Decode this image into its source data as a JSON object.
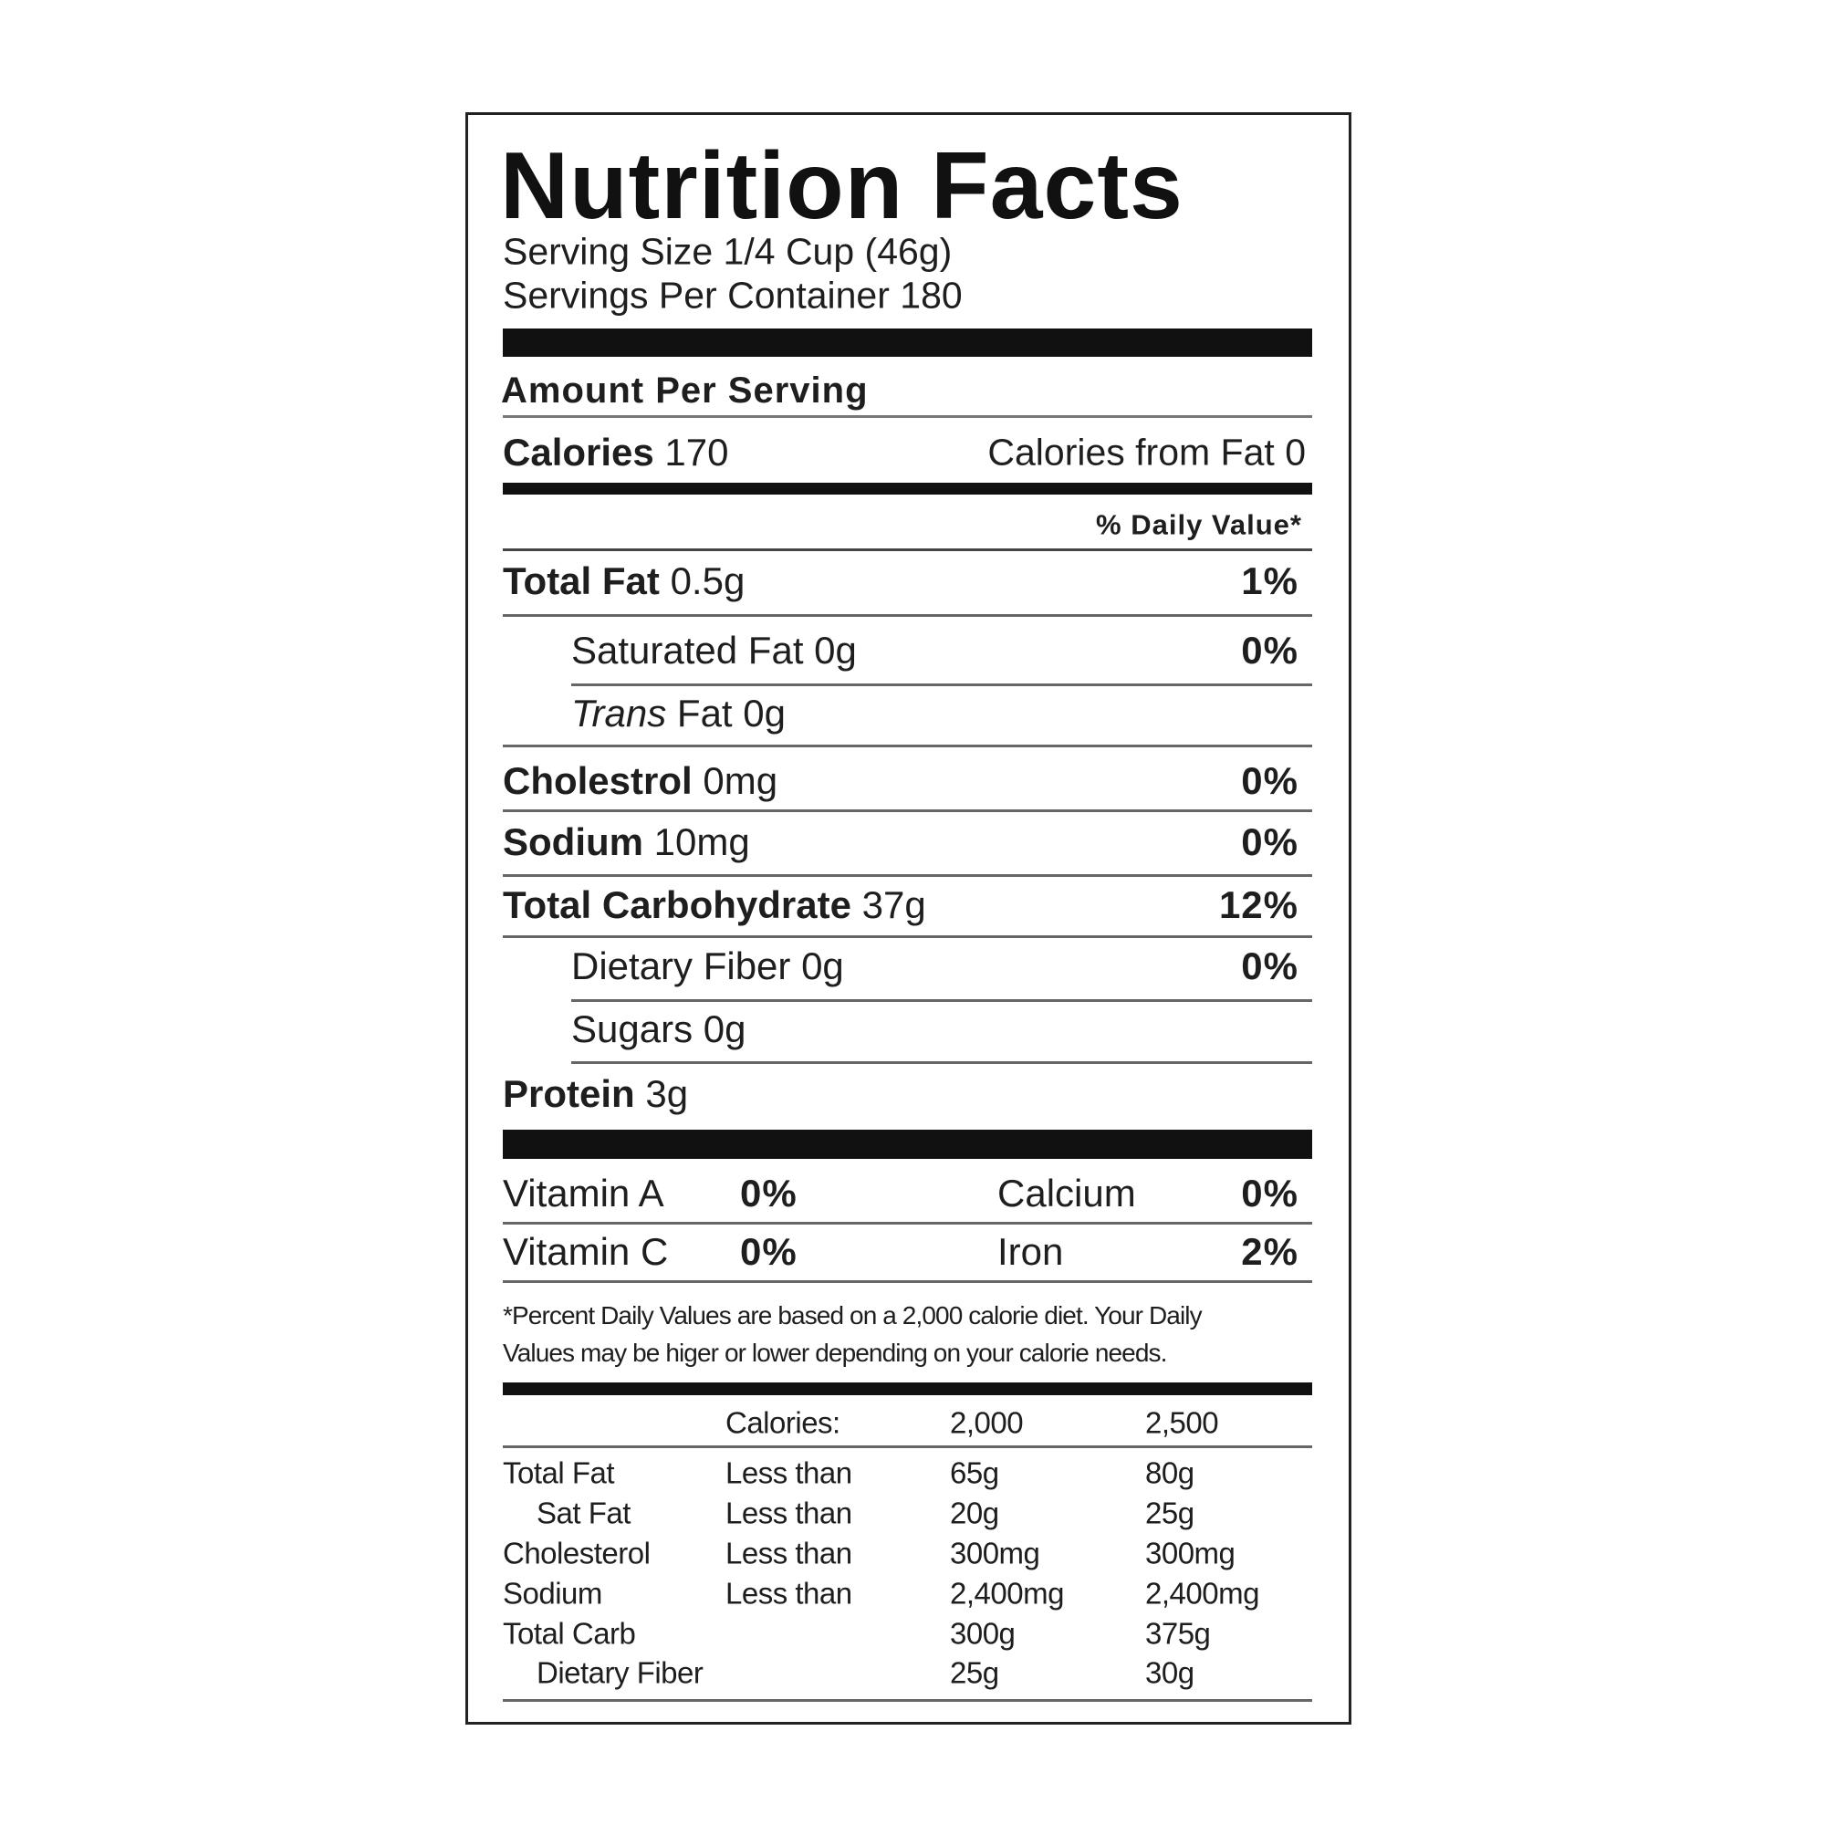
{
  "header": {
    "title": "Nutrition Facts",
    "serving_size": "Serving Size 1/4 Cup (46g)",
    "servings_per_container": "Servings Per Container 180"
  },
  "amount_per_serving": "Amount Per Serving",
  "calories": {
    "label": "Calories",
    "value": "170",
    "from_fat": "Calories from Fat 0"
  },
  "daily_value_heading": "% Daily Value*",
  "nutrients": [
    {
      "label": "Total Fat",
      "amount": "0.5g",
      "daily_value": "1%"
    },
    {
      "label": "Saturated Fat",
      "amount": "0g",
      "daily_value": "0%"
    },
    {
      "prefix": "Trans",
      "label": "Fat",
      "amount": "0g"
    },
    {
      "label": "Cholestrol",
      "amount": "0mg",
      "daily_value": "0%"
    },
    {
      "label": "Sodium",
      "amount": "10mg",
      "daily_value": "0%"
    },
    {
      "label": "Total Carbohydrate",
      "amount": "37g",
      "daily_value": "12%"
    },
    {
      "label": "Dietary Fiber",
      "amount": "0g",
      "daily_value": "0%"
    },
    {
      "label": "Sugars",
      "amount": "0g"
    },
    {
      "label": "Protein",
      "amount": "3g"
    }
  ],
  "vitamins": [
    {
      "name": "Vitamin A",
      "value": "0%"
    },
    {
      "name": "Calcium",
      "value": "0%"
    },
    {
      "name": "Vitamin C",
      "value": "0%"
    },
    {
      "name": "Iron",
      "value": "2%"
    }
  ],
  "footnote": [
    "*Percent Daily Values are based on a 2,000 calorie diet. Your Daily",
    "Values may be higer or lower depending on your calorie needs."
  ],
  "daily_values_table": {
    "header": [
      "Calories:",
      "2,000",
      "2,500"
    ],
    "rows": [
      [
        "Total Fat",
        "Less than",
        "65g",
        "80g"
      ],
      [
        "Sat Fat",
        "Less than",
        "20g",
        "25g"
      ],
      [
        "Cholesterol",
        "Less than",
        "300mg",
        "300mg"
      ],
      [
        "Sodium",
        "Less than",
        "2,400mg",
        "2,400mg"
      ],
      [
        "Total Carb",
        null,
        "300g",
        "375g"
      ],
      [
        "Dietary Fiber",
        null,
        "25g",
        "30g"
      ]
    ]
  }
}
